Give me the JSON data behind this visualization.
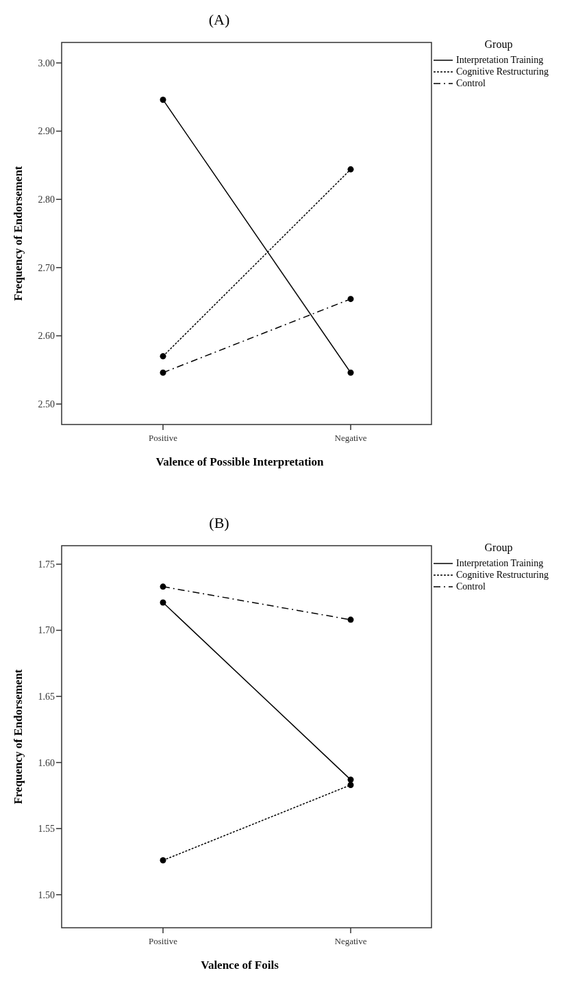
{
  "chart_data": [
    {
      "type": "line",
      "title": "(A)",
      "xlabel": "Valence of Possible Interpretation",
      "ylabel": "Frequency of Endorsement",
      "legend_title": "Group",
      "legend": "right",
      "marker": "circle",
      "grid": false,
      "categories": [
        "Positive",
        "Negative"
      ],
      "ylim": [
        2.47,
        3.03
      ],
      "yticks": [
        {
          "value": 2.5,
          "label": "2.50"
        },
        {
          "value": 2.6,
          "label": "2.60"
        },
        {
          "value": 2.7,
          "label": "2.70"
        },
        {
          "value": 2.8,
          "label": "2.80"
        },
        {
          "value": 2.9,
          "label": "2.90"
        },
        {
          "value": 3.0,
          "label": "3.00"
        }
      ],
      "series": [
        {
          "name": "Interpretation Training",
          "color": "#000000",
          "line_style": "solid",
          "values": [
            2.946,
            2.546
          ]
        },
        {
          "name": "Cognitive Restructuring",
          "color": "#000000",
          "line_style": "dotted",
          "values": [
            2.57,
            2.844
          ]
        },
        {
          "name": "Control",
          "color": "#000000",
          "line_style": "dashed",
          "values": [
            2.546,
            2.654
          ]
        }
      ]
    },
    {
      "type": "line",
      "title": "(B)",
      "xlabel": "Valence of Foils",
      "ylabel": "Frequency of Endorsement",
      "legend_title": "Group",
      "legend": "right",
      "marker": "circle",
      "grid": false,
      "categories": [
        "Positive",
        "Negative"
      ],
      "ylim": [
        1.475,
        1.764
      ],
      "yticks": [
        {
          "value": 1.5,
          "label": "1.50"
        },
        {
          "value": 1.55,
          "label": "1.55"
        },
        {
          "value": 1.6,
          "label": "1.60"
        },
        {
          "value": 1.65,
          "label": "1.65"
        },
        {
          "value": 1.7,
          "label": "1.70"
        },
        {
          "value": 1.75,
          "label": "1.75"
        }
      ],
      "series": [
        {
          "name": "Interpretation Training",
          "color": "#000000",
          "line_style": "solid",
          "values": [
            1.721,
            1.587
          ]
        },
        {
          "name": "Cognitive Restructuring",
          "color": "#000000",
          "line_style": "dotted",
          "values": [
            1.526,
            1.583
          ]
        },
        {
          "name": "Control",
          "color": "#000000",
          "line_style": "dashed",
          "values": [
            1.733,
            1.708
          ]
        }
      ]
    }
  ]
}
